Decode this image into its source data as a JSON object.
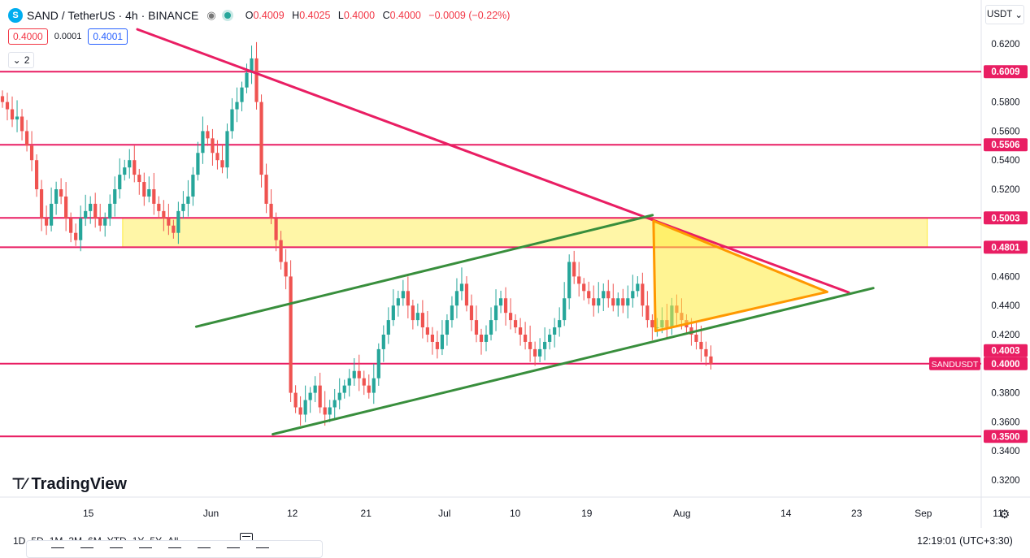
{
  "legend": {
    "symbol_icon": "S",
    "title": "SAND / TetherUS · 4h · BINANCE",
    "eye_icon": "eye-icon",
    "o_label": "O",
    "o_value": "0.4009",
    "h_label": "H",
    "h_value": "0.4025",
    "l_label": "L",
    "l_value": "0.4000",
    "c_label": "C",
    "c_value": "0.4000",
    "change": "−0.0009 (−0.22%)"
  },
  "bidask": {
    "bid": "0.4000",
    "spread": "0.0001",
    "ask": "0.4001"
  },
  "collapse_count": "2",
  "currency": "USDT",
  "brand": "TradingView",
  "ranges": [
    "1D",
    "5D",
    "1M",
    "3M",
    "6M",
    "YTD",
    "1Y",
    "5Y",
    "All"
  ],
  "clock": "12:19:01 (UTC+3:30)",
  "colors": {
    "up": "#26a69a",
    "down": "#ef5350",
    "level": "#e91e63",
    "channel": "#388e3c",
    "triangle": "#ff9800",
    "zone": "#ffeb3b"
  },
  "chart_data": {
    "type": "candlestick",
    "symbol": "SAND / TetherUS",
    "interval": "4h",
    "exchange": "BINANCE",
    "ylim": [
      0.31,
      0.63
    ],
    "y_ticks": [
      "0.6200",
      "0.5800",
      "0.5600",
      "0.5400",
      "0.5200",
      "0.4600",
      "0.4400",
      "0.4200",
      "0.3800",
      "0.3600",
      "0.3400",
      "0.3200"
    ],
    "y_tick_values": [
      0.62,
      0.58,
      0.56,
      0.54,
      0.52,
      0.46,
      0.44,
      0.42,
      0.38,
      0.36,
      0.34,
      0.32
    ],
    "x_ticks": [
      {
        "label": "15",
        "t": 0.09
      },
      {
        "label": "Jun",
        "t": 0.215
      },
      {
        "label": "12",
        "t": 0.298
      },
      {
        "label": "21",
        "t": 0.373
      },
      {
        "label": "Jul",
        "t": 0.453
      },
      {
        "label": "10",
        "t": 0.525
      },
      {
        "label": "19",
        "t": 0.598
      },
      {
        "label": "Aug",
        "t": 0.695
      },
      {
        "label": "14",
        "t": 0.801
      },
      {
        "label": "23",
        "t": 0.873
      },
      {
        "label": "Sep",
        "t": 0.941
      },
      {
        "label": "11",
        "t": 1.017
      }
    ],
    "horizontal_levels": [
      {
        "value": 0.6009,
        "label": "0.6009"
      },
      {
        "value": 0.5506,
        "label": "0.5506"
      },
      {
        "value": 0.5003,
        "label": "0.5003"
      },
      {
        "value": 0.4801,
        "label": "0.4801"
      },
      {
        "value": 0.4,
        "label": "0.4000"
      },
      {
        "value": 0.35,
        "label": "0.3500"
      }
    ],
    "price_tags": [
      {
        "value": 0.4003,
        "label": "0.4003"
      },
      {
        "value": 0.4,
        "label": "0.4000",
        "symbol_label": "SANDUSDT"
      }
    ],
    "zone": {
      "from": 0.4801,
      "to": 0.5003,
      "t_start": 0.125,
      "t_end": 0.945
    },
    "trendlines": [
      {
        "name": "descending-resistance",
        "color": "level",
        "points": [
          {
            "t": 0.14,
            "v": 0.63
          },
          {
            "t": 0.865,
            "v": 0.449
          }
        ]
      },
      {
        "name": "channel-upper",
        "color": "channel",
        "points": [
          {
            "t": 0.2,
            "v": 0.4255
          },
          {
            "t": 0.665,
            "v": 0.5022
          }
        ]
      },
      {
        "name": "channel-lower",
        "color": "channel",
        "points": [
          {
            "t": 0.278,
            "v": 0.3515
          },
          {
            "t": 0.89,
            "v": 0.452
          }
        ]
      }
    ],
    "triangle": [
      {
        "t": 0.666,
        "v": 0.4982
      },
      {
        "t": 0.843,
        "v": 0.4494
      },
      {
        "t": 0.668,
        "v": 0.4225
      }
    ],
    "candles": {
      "t_start": 0.0,
      "t_end": 0.727,
      "closes": [
        0.58,
        0.575,
        0.568,
        0.57,
        0.56,
        0.55,
        0.54,
        0.52,
        0.5,
        0.495,
        0.51,
        0.52,
        0.515,
        0.5,
        0.49,
        0.485,
        0.5,
        0.505,
        0.51,
        0.5,
        0.495,
        0.5,
        0.51,
        0.52,
        0.53,
        0.535,
        0.54,
        0.53,
        0.525,
        0.515,
        0.52,
        0.51,
        0.505,
        0.5,
        0.495,
        0.49,
        0.505,
        0.51,
        0.515,
        0.53,
        0.545,
        0.56,
        0.555,
        0.545,
        0.54,
        0.535,
        0.56,
        0.575,
        0.58,
        0.59,
        0.6,
        0.61,
        0.58,
        0.53,
        0.51,
        0.5,
        0.485,
        0.47,
        0.46,
        0.38,
        0.37,
        0.365,
        0.375,
        0.38,
        0.385,
        0.37,
        0.365,
        0.37,
        0.375,
        0.38,
        0.385,
        0.39,
        0.395,
        0.39,
        0.385,
        0.38,
        0.39,
        0.41,
        0.42,
        0.43,
        0.44,
        0.445,
        0.45,
        0.44,
        0.43,
        0.435,
        0.425,
        0.42,
        0.415,
        0.41,
        0.42,
        0.43,
        0.44,
        0.45,
        0.455,
        0.44,
        0.43,
        0.42,
        0.415,
        0.42,
        0.43,
        0.44,
        0.445,
        0.435,
        0.43,
        0.425,
        0.42,
        0.415,
        0.41,
        0.405,
        0.41,
        0.415,
        0.42,
        0.425,
        0.43,
        0.445,
        0.47,
        0.46,
        0.455,
        0.45,
        0.445,
        0.44,
        0.445,
        0.45,
        0.445,
        0.44,
        0.445,
        0.44,
        0.445,
        0.45,
        0.455,
        0.44,
        0.43,
        0.425,
        0.425,
        0.43,
        0.425,
        0.44,
        0.435,
        0.43,
        0.425,
        0.42,
        0.415,
        0.41,
        0.405,
        0.4
      ]
    }
  }
}
